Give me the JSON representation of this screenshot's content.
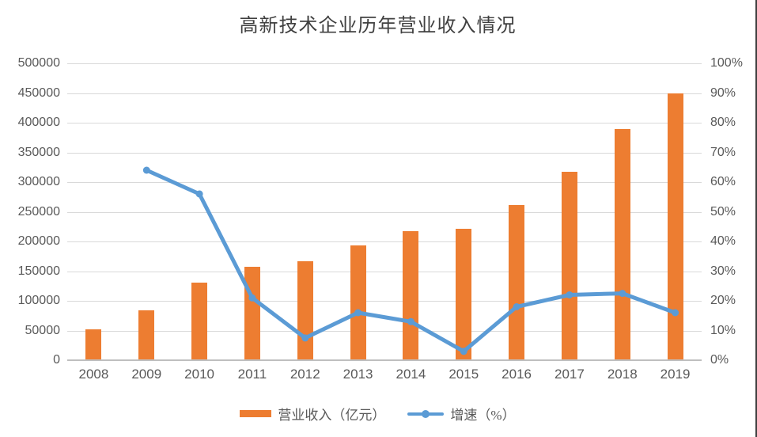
{
  "title": "高新技术企业历年营业收入情况",
  "colors": {
    "bar": "#ed7d31",
    "line": "#5b9bd5",
    "gridline": "#d9d9d9",
    "axis_line": "#bfbfbf",
    "tick_text": "#595959",
    "title_text": "#404040"
  },
  "chart_data": {
    "type": "bar",
    "subtype": "combo-bar-line-dual-axis",
    "title": "高新技术企业历年营业收入情况",
    "categories": [
      "2008",
      "2009",
      "2010",
      "2011",
      "2012",
      "2013",
      "2014",
      "2015",
      "2016",
      "2017",
      "2018",
      "2019"
    ],
    "series": [
      {
        "name": "营业收入（亿元）",
        "type": "bar",
        "axis": "left",
        "color": "#ed7d31",
        "values": [
          52000,
          84000,
          131000,
          157000,
          167000,
          194000,
          217000,
          222000,
          261000,
          318000,
          390000,
          450000
        ]
      },
      {
        "name": "增速（%）",
        "type": "line",
        "axis": "right",
        "color": "#5b9bd5",
        "values": [
          null,
          64,
          56,
          21,
          7.5,
          16,
          13,
          3,
          18,
          22,
          22.5,
          16
        ]
      }
    ],
    "left_axis": {
      "min": 0,
      "max": 500000,
      "step": 50000,
      "tick_labels": [
        "500000",
        "450000",
        "400000",
        "350000",
        "300000",
        "250000",
        "200000",
        "150000",
        "100000",
        "50000",
        "0"
      ]
    },
    "right_axis": {
      "min": 0,
      "max": 100,
      "step": 10,
      "tick_labels": [
        "100%",
        "90%",
        "80%",
        "70%",
        "60%",
        "50%",
        "40%",
        "30%",
        "20%",
        "10%",
        "0%"
      ]
    },
    "grid": true,
    "legend_position": "bottom"
  }
}
